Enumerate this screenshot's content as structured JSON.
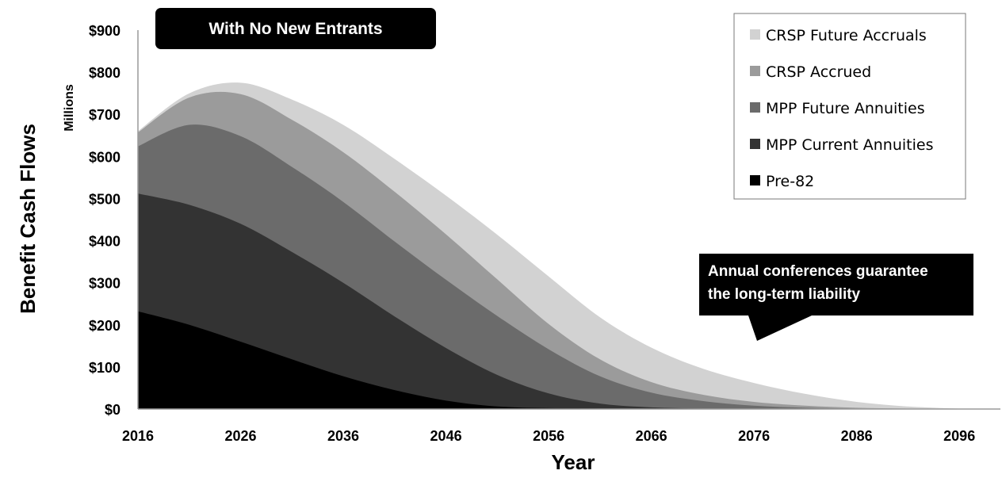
{
  "chart_data": {
    "type": "area",
    "stacked": true,
    "title": "With No New Entrants",
    "xlabel": "Year",
    "ylabel": "Benefit Cash Flows",
    "yunits": "Millions",
    "xlim": [
      2016,
      2100
    ],
    "ylim": [
      0,
      900
    ],
    "x_ticks": [
      "2016",
      "2026",
      "2036",
      "2046",
      "2056",
      "2066",
      "2076",
      "2086",
      "2096"
    ],
    "y_ticks": [
      "$0",
      "$100",
      "$200",
      "$300",
      "$400",
      "$500",
      "$600",
      "$700",
      "$800",
      "$900"
    ],
    "x": [
      2016,
      2021,
      2026,
      2031,
      2036,
      2041,
      2046,
      2051,
      2056,
      2061,
      2066,
      2071,
      2076,
      2081,
      2086,
      2091,
      2096,
      2100
    ],
    "series": [
      {
        "name": "Pre-82",
        "color": "#000000",
        "values": [
          232,
          200,
          160,
          118,
          78,
          45,
          20,
          6,
          2,
          1,
          0,
          0,
          0,
          0,
          0,
          0,
          0,
          0
        ]
      },
      {
        "name": "MPP Current Annuities",
        "color": "#333333",
        "values": [
          280,
          285,
          280,
          255,
          222,
          175,
          125,
          75,
          35,
          12,
          4,
          1,
          0,
          0,
          0,
          0,
          0,
          0
        ]
      },
      {
        "name": "MPP Future Annuities",
        "color": "#6b6b6b",
        "values": [
          112,
          190,
          208,
          202,
          192,
          178,
          162,
          140,
          105,
          65,
          35,
          18,
          8,
          3,
          1,
          0,
          0,
          0
        ]
      },
      {
        "name": "CRSP Accrued",
        "color": "#9b9b9b",
        "values": [
          33,
          65,
          100,
          112,
          118,
          118,
          108,
          87,
          60,
          40,
          25,
          15,
          9,
          5,
          2,
          1,
          0,
          0
        ]
      },
      {
        "name": "CRSP Future Accruals",
        "color": "#d2d2d2",
        "values": [
          3,
          10,
          27,
          48,
          65,
          78,
          92,
          106,
          113,
          100,
          82,
          62,
          45,
          28,
          14,
          5,
          1,
          0
        ]
      }
    ],
    "legend": [
      "CRSP Future Accruals",
      "CRSP Accrued",
      "MPP Future Annuities",
      "MPP Current Annuities",
      "Pre-82"
    ],
    "legend_position": "top-right",
    "annotation": [
      "Annual conferences guarantee",
      "the long-term liability"
    ],
    "grid": false
  }
}
